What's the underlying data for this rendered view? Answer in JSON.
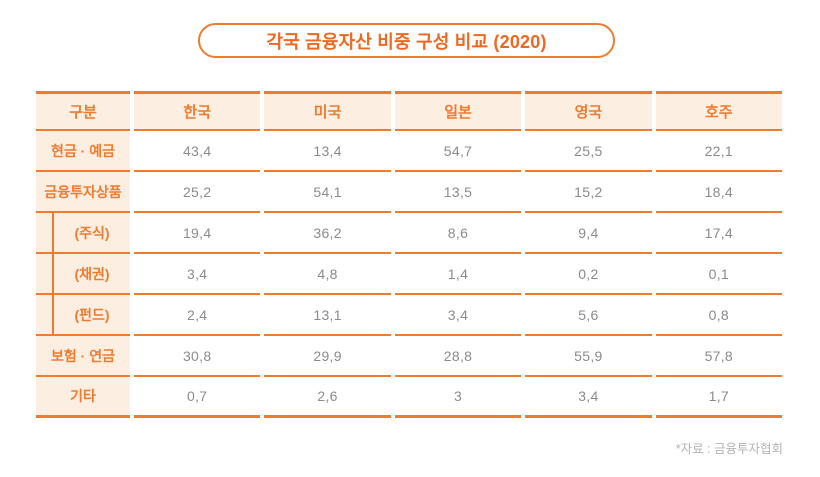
{
  "title": "각국 금융자산 비중 구성 비교 (2020)",
  "source_note": "*자료 : 금융투자협회",
  "colors": {
    "accent": "#ef7b2e",
    "title_text": "#f2671f",
    "header_bg": "#fdeee2",
    "value_text": "#8b8b8b",
    "source_text": "#b4b4b4"
  },
  "table": {
    "columns": [
      "구분",
      "한국",
      "미국",
      "일본",
      "영국",
      "호주"
    ],
    "rows": [
      {
        "label": "현금 · 예금",
        "indent": false,
        "values": [
          "43,4",
          "13,4",
          "54,7",
          "25,5",
          "22,1"
        ]
      },
      {
        "label": "금융투자상품",
        "indent": false,
        "values": [
          "25,2",
          "54,1",
          "13,5",
          "15,2",
          "18,4"
        ]
      },
      {
        "label": "(주식)",
        "indent": true,
        "values": [
          "19,4",
          "36,2",
          "8,6",
          "9,4",
          "17,4"
        ]
      },
      {
        "label": "(채권)",
        "indent": true,
        "values": [
          "3,4",
          "4,8",
          "1,4",
          "0,2",
          "0,1"
        ]
      },
      {
        "label": "(펀드)",
        "indent": true,
        "values": [
          "2,4",
          "13,1",
          "3,4",
          "5,6",
          "0,8"
        ]
      },
      {
        "label": "보험 · 연금",
        "indent": false,
        "values": [
          "30,8",
          "29,9",
          "28,8",
          "55,9",
          "57,8"
        ]
      },
      {
        "label": "기타",
        "indent": false,
        "values": [
          "0,7",
          "2,6",
          "3",
          "3,4",
          "1,7"
        ]
      }
    ]
  },
  "chart_data": {
    "type": "table",
    "title": "각국 금융자산 비중 구성 비교 (2020)",
    "categories": [
      "한국",
      "미국",
      "일본",
      "영국",
      "호주"
    ],
    "series": [
      {
        "name": "현금·예금",
        "values": [
          43.4,
          13.4,
          54.7,
          25.5,
          22.1
        ]
      },
      {
        "name": "금융투자상품",
        "values": [
          25.2,
          54.1,
          13.5,
          15.2,
          18.4
        ]
      },
      {
        "name": "(주식)",
        "values": [
          19.4,
          36.2,
          8.6,
          9.4,
          17.4
        ]
      },
      {
        "name": "(채권)",
        "values": [
          3.4,
          4.8,
          1.4,
          0.2,
          0.1
        ]
      },
      {
        "name": "(펀드)",
        "values": [
          2.4,
          13.1,
          3.4,
          5.6,
          0.8
        ]
      },
      {
        "name": "보험·연금",
        "values": [
          30.8,
          29.9,
          28.8,
          55.9,
          57.8
        ]
      },
      {
        "name": "기타",
        "values": [
          0.7,
          2.6,
          3,
          3.4,
          1.7
        ]
      }
    ],
    "source": "*자료 : 금융투자협회",
    "units": "%",
    "legend_position": "none",
    "grid": "per-cell orange rules"
  }
}
